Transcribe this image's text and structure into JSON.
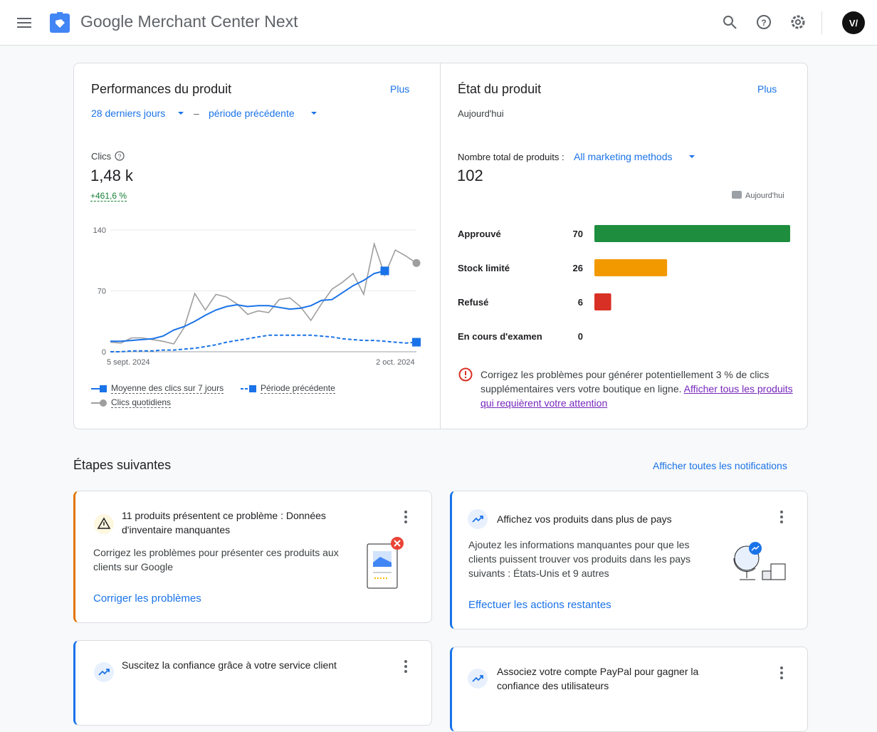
{
  "header": {
    "title": "Google Merchant Center Next"
  },
  "performance": {
    "title": "Performances du produit",
    "more": "Plus",
    "range": "28 derniers jours",
    "separator": "–",
    "compare": "période précédente",
    "metric": "Clics",
    "metric_value": "1,48 k",
    "change": "+461,6 %"
  },
  "chart_data": [
    {
      "type": "line",
      "categories": [
        "5 sept. 2024",
        null,
        null,
        null,
        null,
        null,
        null,
        null,
        null,
        null,
        null,
        null,
        null,
        null,
        null,
        null,
        null,
        null,
        null,
        null,
        null,
        null,
        null,
        null,
        null,
        null,
        null,
        "2 oct. 2024",
        null,
        null
      ],
      "ylim": [
        0,
        140
      ],
      "yticks": [
        0,
        70,
        140
      ],
      "grid": true,
      "series": [
        {
          "name": "Moyenne des clics sur 7 jours",
          "color": "#1a73e8",
          "marker": "square",
          "dashed": false,
          "values": [
            12,
            12,
            13,
            14,
            15,
            18,
            25,
            29,
            35,
            42,
            48,
            52,
            54,
            52,
            53,
            53,
            51,
            49,
            50,
            53,
            59,
            60,
            68,
            76,
            82,
            90,
            93,
            null,
            null,
            null
          ]
        },
        {
          "name": "Période précédente",
          "color": "#1a73e8",
          "marker": "square",
          "dashed": true,
          "values": [
            0,
            0,
            1,
            1,
            1,
            2,
            2,
            3,
            4,
            6,
            8,
            11,
            13,
            15,
            17,
            19,
            19,
            19,
            19,
            19,
            18,
            17,
            15,
            14,
            13,
            13,
            12,
            11,
            10,
            11
          ]
        },
        {
          "name": "Clics quotidiens",
          "color": "#9e9e9e",
          "marker": "circle",
          "dashed": false,
          "values": [
            11,
            10,
            16,
            16,
            14,
            12,
            9,
            28,
            67,
            48,
            66,
            63,
            55,
            43,
            47,
            45,
            60,
            62,
            52,
            36,
            55,
            72,
            80,
            90,
            66,
            124,
            88,
            117,
            110,
            102
          ]
        }
      ]
    },
    {
      "type": "bar",
      "orientation": "horizontal",
      "categories": [
        "Approuvé",
        "Stock limité",
        "Refusé",
        "En cours d'examen"
      ],
      "xlim": [
        0,
        70
      ],
      "series": [
        {
          "name": "Aujourd'hui",
          "color": "#9aa0a6",
          "values": [
            70,
            26,
            6,
            0
          ]
        }
      ],
      "bar_colors": [
        "#1e8e3e",
        "#f29900",
        "#d93025",
        "#9aa0a6"
      ]
    }
  ],
  "status": {
    "title": "État du produit",
    "more": "Plus",
    "date": "Aujourd'hui",
    "total_label": "Nombre total de produits :",
    "filter": "All marketing methods",
    "total": 102,
    "alert": "Corrigez les problèmes pour générer potentiellement 3 % de clics supplémentaires vers votre boutique en ligne.",
    "alert_link": "Afficher tous les produits qui requièrent votre attention"
  },
  "next_steps": {
    "title": "Étapes suivantes",
    "link": "Afficher toutes les notifications",
    "cards": [
      {
        "title": "11 produits présentent ce problème : Données d'inventaire manquantes",
        "body": "Corrigez les problèmes pour présenter ces produits aux clients sur Google",
        "action": "Corriger les problèmes"
      },
      {
        "title": "Affichez vos produits dans plus de pays",
        "body": "Ajoutez les informations manquantes pour que les clients puissent trouver vos produits dans les pays suivants : États-Unis et 9 autres",
        "action": "Effectuer les actions restantes"
      },
      {
        "title": "Suscitez la confiance grâce à votre service client"
      },
      {
        "title": "Associez votre compte PayPal pour gagner la confiance des utilisateurs"
      }
    ]
  }
}
